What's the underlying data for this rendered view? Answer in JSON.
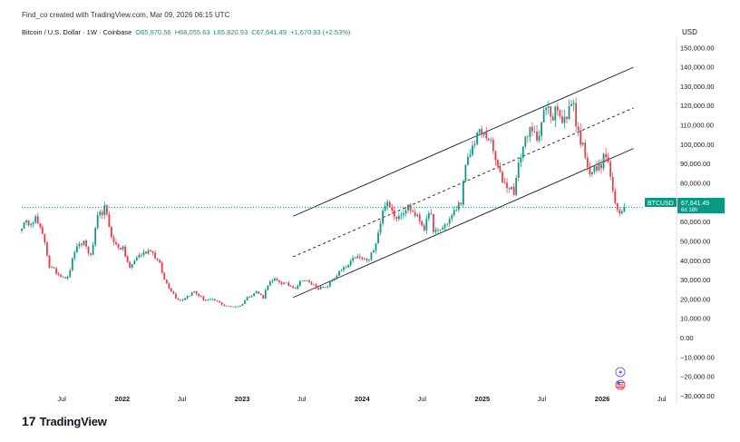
{
  "header": {
    "credit": "Find_co created with TradingView.com, Mar 09, 2026 06:15 UTC"
  },
  "legend": {
    "symbol": "Bitcoin / U.S. Dollar · 1W · Coinbase",
    "open": "O65,970.56",
    "high": "H68,055.63",
    "low": "L65,820.93",
    "close": "C67,641.49",
    "change": "+1,670.93 (+2.53%)"
  },
  "brand": {
    "logo": "17",
    "name": "TradingView"
  },
  "price_tag": {
    "symbol": "BTCUSD",
    "price": "67,641.49",
    "countdown": "6d 18h"
  },
  "colors": {
    "up": "#089981",
    "down": "#f23645",
    "accent": "#131722"
  },
  "icons": [
    "lightning-icon",
    "flag-us-icon"
  ],
  "chart_data": {
    "type": "candlestick",
    "title": "",
    "y_unit_label": "USD",
    "ylim": [
      -34000,
      156000
    ],
    "xlim": [
      "2021-03-01",
      "2026-08-15"
    ],
    "y_ticks": [
      150000,
      140000,
      130000,
      120000,
      110000,
      100000,
      90000,
      80000,
      70000,
      60000,
      50000,
      40000,
      30000,
      20000,
      10000,
      0,
      -10000,
      -20000,
      -30000
    ],
    "y_tick_labels": [
      "150,000.00",
      "140,000.00",
      "130,000.00",
      "120,000.00",
      "110,000.00",
      "100,000.00",
      "90,000.00",
      "80,000.00",
      "70,000.00",
      "60,000.00",
      "50,000.00",
      "40,000.00",
      "30,000.00",
      "20,000.00",
      "10,000.00",
      "0.00",
      "−10,000.00",
      "−20,000.00",
      "−30,000.00"
    ],
    "x_ticks": [
      {
        "date": "2021-07-01",
        "label": "Jul",
        "bold": false
      },
      {
        "date": "2022-01-01",
        "label": "2022",
        "bold": true
      },
      {
        "date": "2022-07-01",
        "label": "Jul",
        "bold": false
      },
      {
        "date": "2023-01-01",
        "label": "2023",
        "bold": true
      },
      {
        "date": "2023-07-01",
        "label": "Jul",
        "bold": false
      },
      {
        "date": "2024-01-01",
        "label": "2024",
        "bold": true
      },
      {
        "date": "2024-07-01",
        "label": "Jul",
        "bold": false
      },
      {
        "date": "2025-01-01",
        "label": "2025",
        "bold": true
      },
      {
        "date": "2025-07-01",
        "label": "Jul",
        "bold": false
      },
      {
        "date": "2026-01-01",
        "label": "2026",
        "bold": true
      },
      {
        "date": "2026-07-01",
        "label": "Jul",
        "bold": false
      }
    ],
    "price_path": [
      [
        "2021-03-01",
        58000
      ],
      [
        "2021-04-12",
        62000
      ],
      [
        "2021-05-10",
        50000
      ],
      [
        "2021-05-24",
        37000
      ],
      [
        "2021-06-21",
        33000
      ],
      [
        "2021-07-19",
        31000
      ],
      [
        "2021-08-09",
        45000
      ],
      [
        "2021-09-06",
        50000
      ],
      [
        "2021-09-27",
        42000
      ],
      [
        "2021-10-18",
        62000
      ],
      [
        "2021-11-08",
        67000
      ],
      [
        "2021-12-06",
        49000
      ],
      [
        "2022-01-03",
        46000
      ],
      [
        "2022-01-24",
        36000
      ],
      [
        "2022-02-14",
        42000
      ],
      [
        "2022-03-28",
        46000
      ],
      [
        "2022-04-25",
        38000
      ],
      [
        "2022-05-09",
        30000
      ],
      [
        "2022-06-13",
        21000
      ],
      [
        "2022-06-27",
        19500
      ],
      [
        "2022-08-08",
        24000
      ],
      [
        "2022-09-05",
        20000
      ],
      [
        "2022-10-10",
        19500
      ],
      [
        "2022-11-07",
        17000
      ],
      [
        "2022-11-21",
        16200
      ],
      [
        "2022-12-26",
        16600
      ],
      [
        "2023-01-16",
        21000
      ],
      [
        "2023-02-13",
        24000
      ],
      [
        "2023-03-06",
        21000
      ],
      [
        "2023-03-20",
        28000
      ],
      [
        "2023-04-10",
        30000
      ],
      [
        "2023-06-12",
        26000
      ],
      [
        "2023-07-03",
        30500
      ],
      [
        "2023-08-21",
        26000
      ],
      [
        "2023-09-11",
        25800
      ],
      [
        "2023-10-23",
        34000
      ],
      [
        "2023-11-20",
        37500
      ],
      [
        "2023-12-11",
        42000
      ],
      [
        "2024-01-22",
        40000
      ],
      [
        "2024-02-12",
        50000
      ],
      [
        "2024-03-11",
        70000
      ],
      [
        "2024-04-15",
        63000
      ],
      [
        "2024-05-20",
        68000
      ],
      [
        "2024-06-24",
        61000
      ],
      [
        "2024-07-08",
        57000
      ],
      [
        "2024-07-29",
        66000
      ],
      [
        "2024-08-05",
        54000
      ],
      [
        "2024-09-02",
        57000
      ],
      [
        "2024-09-30",
        63000
      ],
      [
        "2024-10-28",
        71000
      ],
      [
        "2024-11-11",
        88000
      ],
      [
        "2024-12-16",
        106000
      ],
      [
        "2025-01-20",
        104000
      ],
      [
        "2025-02-24",
        84000
      ],
      [
        "2025-03-10",
        80000
      ],
      [
        "2025-04-07",
        76000
      ],
      [
        "2025-04-28",
        95000
      ],
      [
        "2025-05-19",
        107000
      ],
      [
        "2025-06-16",
        104000
      ],
      [
        "2025-07-14",
        119000
      ],
      [
        "2025-08-04",
        114000
      ],
      [
        "2025-08-11",
        123000
      ],
      [
        "2025-09-01",
        110000
      ],
      [
        "2025-10-06",
        124000
      ],
      [
        "2025-10-13",
        110000
      ],
      [
        "2025-11-10",
        95000
      ],
      [
        "2025-11-24",
        86000
      ],
      [
        "2025-12-22",
        88000
      ],
      [
        "2026-01-12",
        95000
      ],
      [
        "2026-01-26",
        84000
      ],
      [
        "2026-02-09",
        68000
      ],
      [
        "2026-02-23",
        64000
      ],
      [
        "2026-03-09",
        67641
      ]
    ],
    "channel": {
      "upper": [
        [
          "2023-06-05",
          63000
        ],
        [
          "2026-04-06",
          140000
        ]
      ],
      "middle": [
        [
          "2023-06-05",
          42000
        ],
        [
          "2026-04-06",
          119000
        ]
      ],
      "lower": [
        [
          "2023-06-05",
          21000
        ],
        [
          "2026-04-06",
          98000
        ]
      ]
    },
    "last_price": 67641.49
  }
}
